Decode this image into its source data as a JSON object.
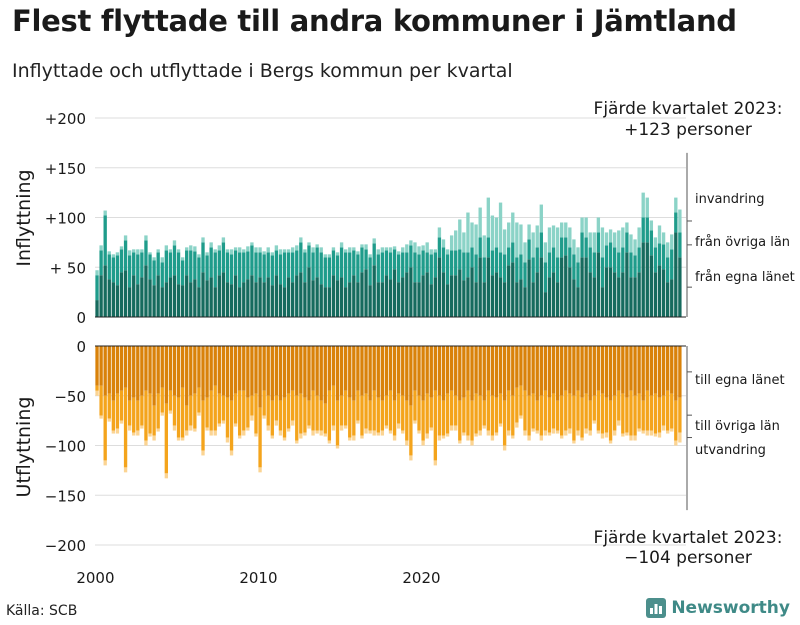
{
  "title": "Flest flyttade till andra kommuner i Jämtland",
  "subtitle": "Inflyttade och utflyttade i Bergs kommun per kvartal",
  "source": "Källa: SCB",
  "brand": "Newsworthy",
  "colors": {
    "in_egna": "#166b5e",
    "in_ovriga": "#1f9c8b",
    "in_invandring": "#8bd3c7",
    "out_egna": "#d9820a",
    "out_ovriga": "#f4a41c",
    "out_utvandring": "#fbd493",
    "grid": "#dddddd",
    "axis": "#222222"
  },
  "chart_data": {
    "type": "stacked-bar",
    "title": "Flest flyttade till andra kommuner i Jämtland",
    "subtitle": "Inflyttade och utflyttade i Bergs kommun per kvartal",
    "x_start_year": 2000,
    "periods_per_year": 4,
    "x_ticks": [
      "2000",
      "2010",
      "2020"
    ],
    "x_tick_years": [
      2000,
      2010,
      2020
    ],
    "inflyttning": {
      "ylabel": "Inflyttning",
      "ylim": [
        0,
        200
      ],
      "tick_values": [
        0,
        50,
        100,
        150,
        200
      ],
      "tick_labels": [
        "0",
        "+ 50",
        "+100",
        "+150",
        "+200"
      ],
      "series_names": [
        "från egna länet",
        "från övriga län",
        "invandring"
      ],
      "annotation_line1": "Fjärde kvartalet 2023:",
      "annotation_line2": "+123 personer",
      "series": [
        {
          "name": "från egna länet",
          "values": [
            17,
            42,
            52,
            38,
            35,
            32,
            45,
            47,
            30,
            42,
            33,
            40,
            52,
            38,
            32,
            42,
            30,
            35,
            40,
            42,
            33,
            32,
            42,
            35,
            38,
            30,
            45,
            37,
            40,
            30,
            42,
            45,
            35,
            33,
            42,
            30,
            35,
            38,
            42,
            35,
            40,
            35,
            40,
            32,
            42,
            33,
            30,
            40,
            35,
            42,
            45,
            35,
            50,
            37,
            40,
            33,
            30,
            30,
            42,
            37,
            40,
            30,
            35,
            42,
            35,
            45,
            48,
            32,
            52,
            35,
            35,
            42,
            38,
            48,
            35,
            40,
            45,
            50,
            35,
            35,
            42,
            45,
            33,
            40,
            60,
            45,
            33,
            42,
            42,
            48,
            37,
            40,
            50,
            35,
            60,
            35,
            60,
            42,
            45,
            40,
            35,
            52,
            55,
            35,
            38,
            30,
            58,
            35,
            45,
            60,
            25,
            40,
            45,
            35,
            60,
            62,
            50,
            38,
            30,
            60,
            60,
            45,
            40,
            65,
            30,
            50,
            50,
            45,
            40,
            45,
            65,
            40,
            40,
            45,
            75,
            75,
            62,
            45,
            52,
            48,
            35,
            38,
            85,
            60
          ]
        },
        {
          "name": "från övriga län",
          "values": [
            25,
            25,
            50,
            25,
            25,
            30,
            23,
            30,
            32,
            23,
            30,
            25,
            25,
            25,
            25,
            23,
            25,
            32,
            25,
            30,
            32,
            25,
            25,
            32,
            28,
            30,
            30,
            25,
            30,
            35,
            25,
            30,
            30,
            30,
            25,
            35,
            30,
            28,
            30,
            30,
            25,
            28,
            25,
            30,
            25,
            30,
            35,
            25,
            30,
            25,
            30,
            30,
            22,
            28,
            30,
            32,
            30,
            30,
            25,
            25,
            30,
            35,
            30,
            25,
            28,
            25,
            20,
            28,
            22,
            28,
            30,
            25,
            27,
            20,
            28,
            25,
            20,
            22,
            30,
            28,
            25,
            20,
            30,
            25,
            20,
            25,
            30,
            25,
            25,
            20,
            28,
            25,
            20,
            28,
            20,
            25,
            20,
            25,
            25,
            25,
            28,
            18,
            20,
            25,
            25,
            25,
            20,
            25,
            25,
            25,
            30,
            25,
            25,
            25,
            20,
            18,
            20,
            25,
            25,
            25,
            20,
            25,
            25,
            20,
            30,
            22,
            25,
            25,
            25,
            25,
            20,
            25,
            22,
            25,
            25,
            25,
            25,
            25,
            22,
            25,
            25,
            30,
            20,
            25
          ]
        },
        {
          "name": "invandring",
          "values": [
            5,
            5,
            5,
            3,
            3,
            3,
            3,
            5,
            5,
            3,
            5,
            3,
            5,
            2,
            3,
            3,
            5,
            5,
            3,
            5,
            3,
            3,
            3,
            5,
            5,
            3,
            5,
            3,
            5,
            3,
            5,
            5,
            3,
            5,
            3,
            5,
            3,
            5,
            3,
            5,
            5,
            3,
            5,
            3,
            5,
            5,
            3,
            3,
            5,
            5,
            5,
            3,
            3,
            5,
            3,
            5,
            3,
            3,
            3,
            3,
            5,
            3,
            5,
            3,
            3,
            3,
            5,
            3,
            5,
            5,
            5,
            3,
            5,
            3,
            3,
            5,
            8,
            5,
            10,
            8,
            5,
            10,
            5,
            3,
            10,
            8,
            5,
            15,
            20,
            30,
            20,
            40,
            25,
            30,
            30,
            22,
            40,
            35,
            30,
            50,
            25,
            25,
            30,
            35,
            30,
            20,
            15,
            25,
            22,
            28,
            20,
            25,
            22,
            30,
            15,
            15,
            20,
            15,
            15,
            15,
            20,
            15,
            20,
            15,
            30,
            13,
            13,
            15,
            22,
            20,
            10,
            18,
            16,
            20,
            25,
            20,
            10,
            10,
            18,
            12,
            15,
            15,
            15,
            23
          ]
        }
      ]
    },
    "utflyttning": {
      "ylabel": "Utflyttning",
      "ylim": [
        -200,
        0
      ],
      "tick_values": [
        0,
        -50,
        -100,
        -150,
        -200
      ],
      "tick_labels": [
        "0",
        "−50",
        "−100",
        "−150",
        "−200"
      ],
      "series_names": [
        "till egna länet",
        "till övriga län",
        "utvandring"
      ],
      "annotation_line1": "Fjärde kvartalet 2023:",
      "annotation_line2": "−104 personer",
      "series": [
        {
          "name": "till egna länet",
          "values": [
            40,
            40,
            50,
            48,
            55,
            48,
            45,
            42,
            55,
            52,
            55,
            50,
            45,
            48,
            60,
            48,
            42,
            58,
            45,
            50,
            52,
            42,
            60,
            50,
            48,
            42,
            55,
            52,
            45,
            40,
            48,
            50,
            52,
            55,
            48,
            45,
            45,
            52,
            50,
            48,
            62,
            45,
            50,
            55,
            50,
            55,
            52,
            48,
            45,
            50,
            48,
            52,
            55,
            45,
            50,
            55,
            58,
            45,
            40,
            55,
            50,
            45,
            52,
            55,
            45,
            50,
            48,
            55,
            45,
            52,
            55,
            50,
            45,
            55,
            48,
            50,
            55,
            60,
            45,
            50,
            55,
            48,
            52,
            45,
            50,
            55,
            48,
            45,
            50,
            55,
            52,
            45,
            55,
            48,
            50,
            55,
            45,
            50,
            52,
            48,
            55,
            45,
            50,
            42,
            40,
            45,
            50,
            48,
            55,
            50,
            45,
            52,
            48,
            55,
            50,
            45,
            48,
            50,
            45,
            52,
            48,
            55,
            50,
            45,
            48,
            52,
            55,
            50,
            45,
            48,
            52,
            45,
            50,
            48,
            55,
            45,
            50,
            48,
            52,
            50,
            45,
            48,
            55,
            52
          ]
        },
        {
          "name": "till övriga län",
          "values": [
            5,
            30,
            65,
            25,
            30,
            35,
            30,
            80,
            25,
            35,
            30,
            30,
            50,
            40,
            30,
            35,
            25,
            70,
            20,
            30,
            40,
            50,
            25,
            30,
            35,
            25,
            50,
            30,
            40,
            45,
            30,
            25,
            40,
            50,
            30,
            45,
            40,
            30,
            20,
            40,
            60,
            25,
            30,
            35,
            25,
            30,
            40,
            35,
            30,
            45,
            40,
            35,
            25,
            40,
            35,
            30,
            30,
            50,
            40,
            45,
            30,
            35,
            40,
            35,
            30,
            40,
            35,
            30,
            40,
            35,
            30,
            30,
            40,
            35,
            30,
            35,
            40,
            50,
            30,
            35,
            40,
            40,
            30,
            70,
            40,
            35,
            40,
            35,
            30,
            40,
            35,
            45,
            40,
            40,
            35,
            25,
            40,
            40,
            35,
            30,
            45,
            40,
            40,
            35,
            30,
            40,
            40,
            35,
            30,
            40,
            40,
            35,
            35,
            30,
            40,
            40,
            35,
            45,
            40,
            40,
            35,
            30,
            25,
            40,
            40,
            35,
            40,
            35,
            30,
            40,
            35,
            45,
            40,
            35,
            30,
            40,
            35,
            40,
            35,
            30,
            40,
            35,
            40,
            35
          ]
        },
        {
          "name": "utvandring",
          "values": [
            5,
            3,
            5,
            3,
            3,
            5,
            3,
            5,
            5,
            3,
            5,
            3,
            5,
            3,
            5,
            3,
            3,
            5,
            3,
            5,
            3,
            3,
            5,
            5,
            3,
            3,
            5,
            3,
            5,
            5,
            3,
            3,
            5,
            5,
            3,
            3,
            5,
            3,
            5,
            3,
            5,
            3,
            5,
            3,
            5,
            5,
            3,
            3,
            5,
            3,
            5,
            3,
            3,
            5,
            3,
            5,
            3,
            3,
            5,
            3,
            5,
            3,
            3,
            5,
            3,
            3,
            5,
            3,
            5,
            3,
            5,
            3,
            3,
            5,
            5,
            3,
            5,
            5,
            3,
            3,
            5,
            5,
            3,
            5,
            5,
            3,
            3,
            5,
            5,
            3,
            3,
            5,
            5,
            3,
            5,
            3,
            5,
            5,
            3,
            3,
            5,
            5,
            3,
            5,
            3,
            5,
            5,
            3,
            3,
            5,
            5,
            3,
            5,
            3,
            3,
            5,
            5,
            3,
            5,
            3,
            5,
            5,
            3,
            3,
            5,
            5,
            3,
            5,
            5,
            3,
            3,
            5,
            5,
            3,
            3,
            5,
            5,
            3,
            5,
            5,
            3,
            3,
            5,
            10
          ]
        }
      ]
    }
  }
}
